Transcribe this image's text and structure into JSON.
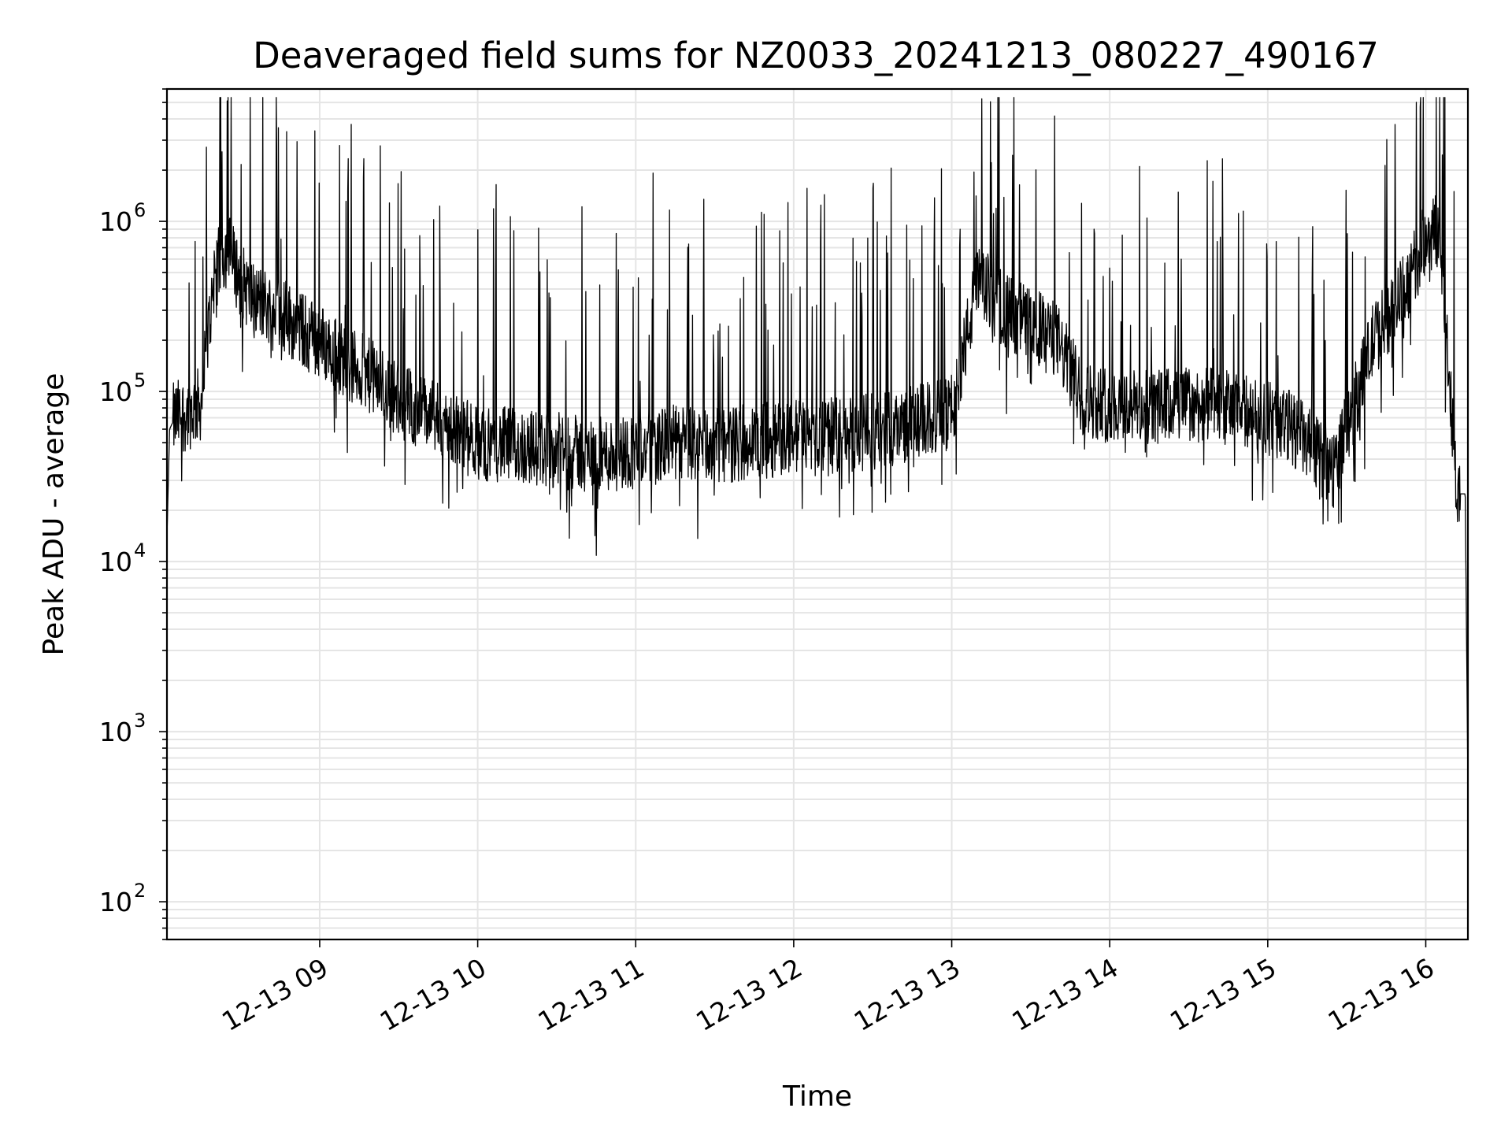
{
  "chart_data": {
    "type": "line",
    "title": "Deaveraged field sums for NZ0033_20241213_080227_490167",
    "xlabel": "Time",
    "ylabel": "Peak ADU - average",
    "yscale": "log",
    "ylim": [
      60,
      6000000
    ],
    "xlim": [
      "12-13 08:02",
      "12-13 16:16"
    ],
    "grid": true,
    "line_color": "#000000",
    "grid_color": "#e5e5e5",
    "x_ticks": [
      {
        "label": "12-13 09",
        "t": 9.0
      },
      {
        "label": "12-13 10",
        "t": 10.0
      },
      {
        "label": "12-13 11",
        "t": 11.0
      },
      {
        "label": "12-13 12",
        "t": 12.0
      },
      {
        "label": "12-13 13",
        "t": 13.0
      },
      {
        "label": "12-13 14",
        "t": 14.0
      },
      {
        "label": "12-13 15",
        "t": 15.0
      },
      {
        "label": "12-13 16",
        "t": 16.0
      }
    ],
    "y_ticks": [
      {
        "base": "10",
        "exp": "2",
        "value": 100
      },
      {
        "base": "10",
        "exp": "3",
        "value": 1000
      },
      {
        "base": "10",
        "exp": "4",
        "value": 10000
      },
      {
        "base": "10",
        "exp": "5",
        "value": 100000
      },
      {
        "base": "10",
        "exp": "6",
        "value": 1000000
      }
    ],
    "series": [
      {
        "x": [
          "12-13 08:02",
          "12-13 08:03",
          "12-13 08:05",
          "12-13 08:10",
          "12-13 08:15",
          "12-13 08:20",
          "12-13 08:25",
          "12-13 08:30",
          "12-13 08:35",
          "12-13 08:40",
          "12-13 08:45",
          "12-13 08:50",
          "12-13 08:55",
          "12-13 09:00",
          "12-13 09:10",
          "12-13 09:20",
          "12-13 09:30",
          "12-13 09:40",
          "12-13 09:50",
          "12-13 10:00",
          "12-13 10:15",
          "12-13 10:30",
          "12-13 10:45",
          "12-13 11:00",
          "12-13 11:15",
          "12-13 11:30",
          "12-13 11:45",
          "12-13 12:00",
          "12-13 12:15",
          "12-13 12:30",
          "12-13 12:45",
          "12-13 13:00",
          "12-13 13:10",
          "12-13 13:20",
          "12-13 13:30",
          "12-13 13:40",
          "12-13 13:50",
          "12-13 14:00",
          "12-13 14:15",
          "12-13 14:30",
          "12-13 14:45",
          "12-13 15:00",
          "12-13 15:10",
          "12-13 15:20",
          "12-13 15:25",
          "12-13 15:30",
          "12-13 15:40",
          "12-13 15:50",
          "12-13 15:55",
          "12-13 16:00",
          "12-13 16:05",
          "12-13 16:08",
          "12-13 16:12",
          "12-13 16:15",
          "12-13 16:16"
        ],
        "y": [
          14000,
          60000,
          70000,
          75000,
          85000,
          500000,
          700000,
          450000,
          350000,
          320000,
          300000,
          250000,
          220000,
          200000,
          150000,
          120000,
          90000,
          75000,
          60000,
          50000,
          48000,
          45000,
          42000,
          45000,
          50000,
          48000,
          50000,
          55000,
          55000,
          58000,
          65000,
          75000,
          450000,
          300000,
          250000,
          200000,
          90000,
          85000,
          80000,
          85000,
          80000,
          70000,
          60000,
          40000,
          35000,
          60000,
          200000,
          350000,
          500000,
          800000,
          900000,
          200000,
          25000,
          25000,
          500
        ]
      }
    ]
  }
}
